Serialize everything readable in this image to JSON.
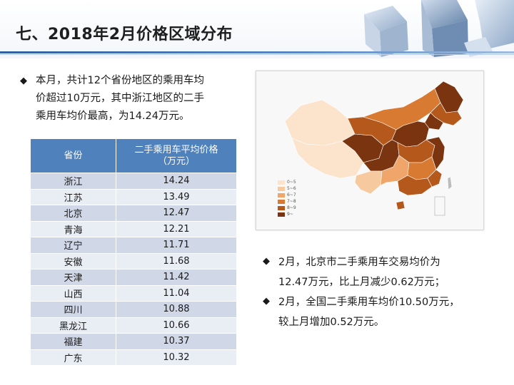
{
  "title": "七、2018年2月价格区域分布",
  "bullets_left": [
    {
      "lines": [
        "本月，共计12个省份地区的乘用车均",
        "价超过10万元，其中浙江地区的二手",
        "乘用车均价最高，为14.24万元。"
      ]
    }
  ],
  "table": {
    "headers": {
      "province": "省份",
      "price_line1": "二手乘用车平均价格",
      "price_line2": "（万元）"
    },
    "rows": [
      {
        "province": "浙江",
        "price": "14.24"
      },
      {
        "province": "江苏",
        "price": "13.49"
      },
      {
        "province": "北京",
        "price": "12.47"
      },
      {
        "province": "青海",
        "price": "12.21"
      },
      {
        "province": "辽宁",
        "price": "11.71"
      },
      {
        "province": "安徽",
        "price": "11.68"
      },
      {
        "province": "天津",
        "price": "11.42"
      },
      {
        "province": "山西",
        "price": "11.04"
      },
      {
        "province": "四川",
        "price": "10.88"
      },
      {
        "province": "黑龙江",
        "price": "10.66"
      },
      {
        "province": "福建",
        "price": "10.37"
      },
      {
        "province": "广东",
        "price": "10.32"
      }
    ]
  },
  "map": {
    "legend": [
      {
        "label": "0~5",
        "color": "#fbe3cc"
      },
      {
        "label": "5~6",
        "color": "#f7c99e"
      },
      {
        "label": "6~7",
        "color": "#f0a66a"
      },
      {
        "label": "7~8",
        "color": "#d97a33"
      },
      {
        "label": "8~9",
        "color": "#b4581b"
      },
      {
        "label": "9~",
        "color": "#7a3510"
      }
    ]
  },
  "bullets_right": [
    {
      "line1": "2月，北京市二手乘用车交易均价为",
      "line2": "12.47万元，比上月减少0.62万元；"
    },
    {
      "line1": "2月，全国二手乘用车均价10.50万元，",
      "line2": "较上月增加0.52万元。"
    }
  ],
  "colors": {
    "table_header": "#4f81bd",
    "row_odd": "#d0d8e8",
    "row_even": "#e9edf4",
    "accent_line": "#2f5f9c"
  }
}
